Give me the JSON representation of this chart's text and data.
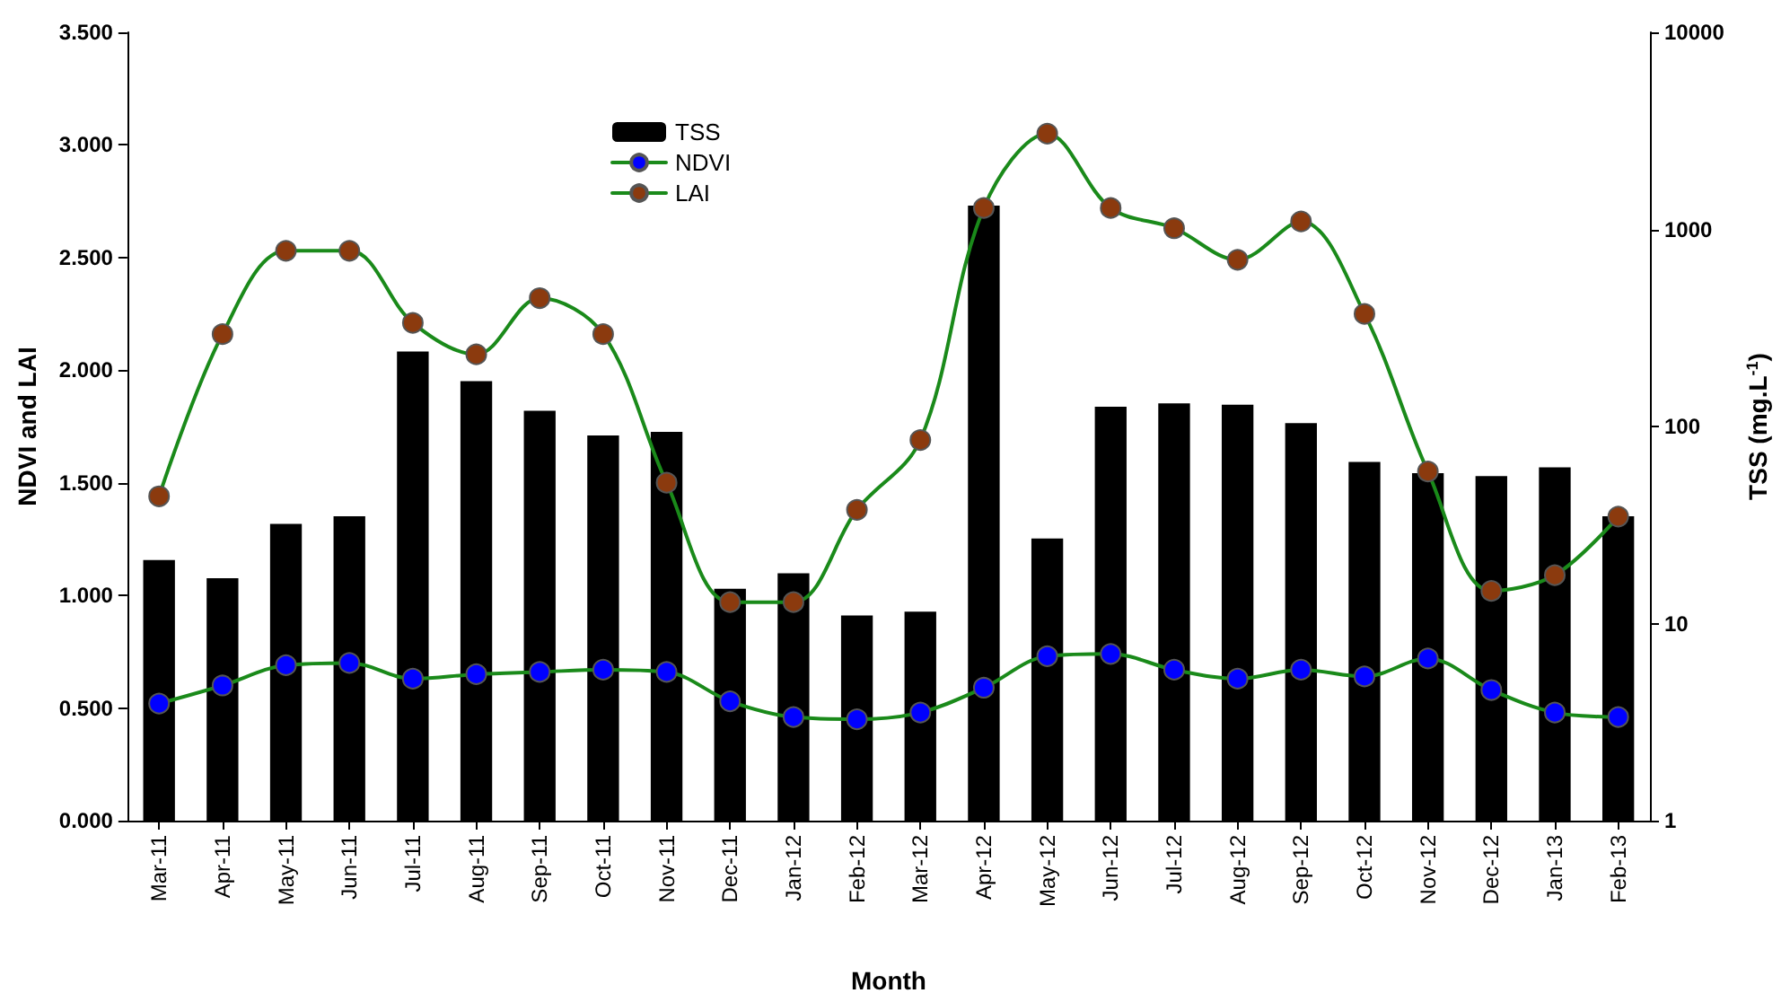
{
  "chart_data": {
    "type": "bar",
    "xlabel": "Month",
    "ylabel": "NDVI and LAI",
    "y2label": "TSS (mg.L$^{-1}$)",
    "categories": [
      "Mar-11",
      "Apr-11",
      "May-11",
      "Jun-11",
      "Jul-11",
      "Aug-11",
      "Sep-11",
      "Oct-11",
      "Nov-11",
      "Dec-11",
      "Jan-12",
      "Feb-12",
      "Mar-12",
      "Apr-12",
      "May-12",
      "Jun-12",
      "Jul-12",
      "Aug-12",
      "Sep-12",
      "Oct-12",
      "Nov-12",
      "Dec-12",
      "Jan-13",
      "Feb-13"
    ],
    "series": [
      {
        "name": "TSS",
        "axis": "y2",
        "color": "#000000",
        "values": [
          21,
          17,
          32,
          35,
          240,
          170,
          120,
          90,
          94,
          15,
          18,
          11,
          11.5,
          1320,
          27,
          126,
          131,
          129,
          104,
          66,
          58,
          56,
          62,
          35
        ]
      },
      {
        "name": "NDVI",
        "type": "line",
        "color": "#0000ff",
        "values": [
          0.52,
          0.6,
          0.69,
          0.7,
          0.63,
          0.65,
          0.66,
          0.67,
          0.66,
          0.53,
          0.46,
          0.45,
          0.48,
          0.59,
          0.73,
          0.74,
          0.67,
          0.63,
          0.67,
          0.64,
          0.72,
          0.58,
          0.48,
          0.46
        ]
      },
      {
        "name": "LAI",
        "type": "line",
        "color": "#8b3a0e",
        "values": [
          1.44,
          2.16,
          2.53,
          2.53,
          2.21,
          2.07,
          2.32,
          2.16,
          1.5,
          0.97,
          0.97,
          1.38,
          1.69,
          2.72,
          3.05,
          2.72,
          2.63,
          2.49,
          2.66,
          2.25,
          1.55,
          1.02,
          1.09,
          1.35
        ]
      }
    ],
    "ylim": [
      0,
      3.5
    ],
    "yticks": [
      {
        "value": 0,
        "label": "0.000"
      },
      {
        "value": 0.5,
        "label": "0.500"
      },
      {
        "value": 1,
        "label": "1.000"
      },
      {
        "value": 1.5,
        "label": "1.500"
      },
      {
        "value": 2,
        "label": "2.000"
      },
      {
        "value": 2.5,
        "label": "2.500"
      },
      {
        "value": 3,
        "label": "3.000"
      },
      {
        "value": 3.5,
        "label": "3.500"
      }
    ],
    "y2lim": [
      1,
      10000
    ],
    "y2ticks": [
      1,
      10,
      100,
      1000,
      10000
    ],
    "log": "y2",
    "grid": false,
    "legend": "top",
    "marker": "circle",
    "line_style": "solid"
  }
}
